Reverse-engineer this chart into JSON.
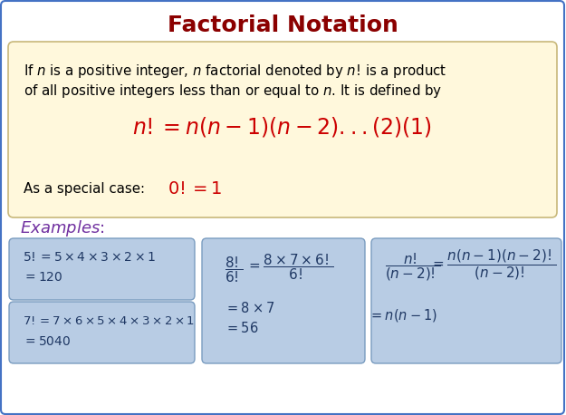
{
  "title": "Factorial Notation",
  "title_color": "#8B0000",
  "title_fontsize": 18,
  "bg_color": "#FFFFFF",
  "outer_border_color": "#4472C4",
  "definition_box_color": "#FFF8DC",
  "definition_box_border": "#C8B87A",
  "example_box_color": "#B8CCE4",
  "example_box_border": "#7A9CC0",
  "def_text_color": "#000000",
  "red_formula_color": "#CC0000",
  "purple_color": "#7030A0",
  "example_text_color": "#1F3864"
}
